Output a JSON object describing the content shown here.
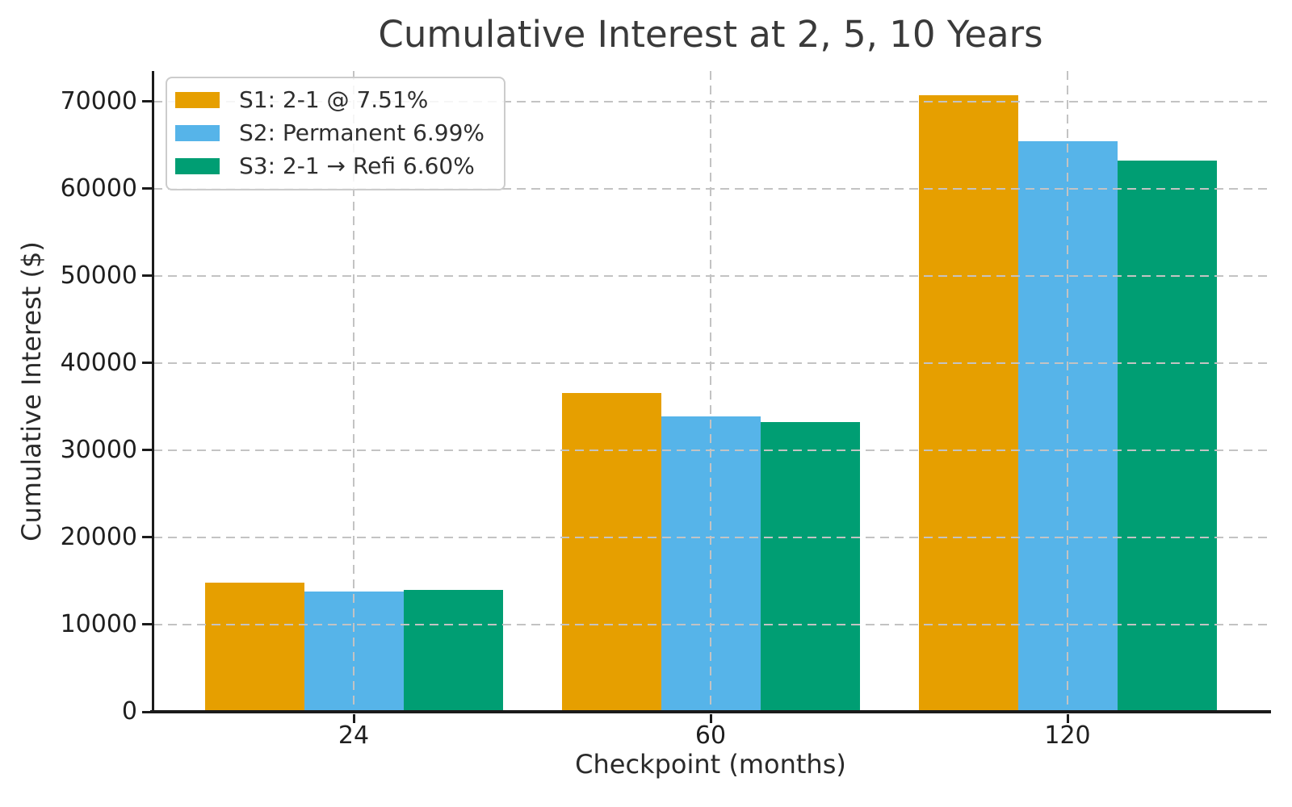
{
  "chart_data": {
    "type": "bar",
    "title": "Cumulative Interest at 2, 5, 10 Years",
    "xlabel": "Checkpoint (months)",
    "ylabel": "Cumulative Interest ($)",
    "categories": [
      "24",
      "60",
      "120"
    ],
    "series": [
      {
        "name": "S1: 2-1 @ 7.51%",
        "color": "#E69F00",
        "values": [
          14850,
          36550,
          70750
        ]
      },
      {
        "name": "S2: Permanent 6.99%",
        "color": "#56B4E9",
        "values": [
          13750,
          33900,
          65450
        ]
      },
      {
        "name": "S3: 2-1 → Refi 6.60%",
        "color": "#009E73",
        "values": [
          14000,
          33200,
          63250
        ]
      }
    ],
    "ylim": [
      0,
      73500
    ],
    "yticks": [
      0,
      10000,
      20000,
      30000,
      40000,
      50000,
      60000,
      70000
    ],
    "grid": "dashed, horizontal at yticks and vertical at category centers, drawn over bars",
    "legend_position": "upper left"
  }
}
